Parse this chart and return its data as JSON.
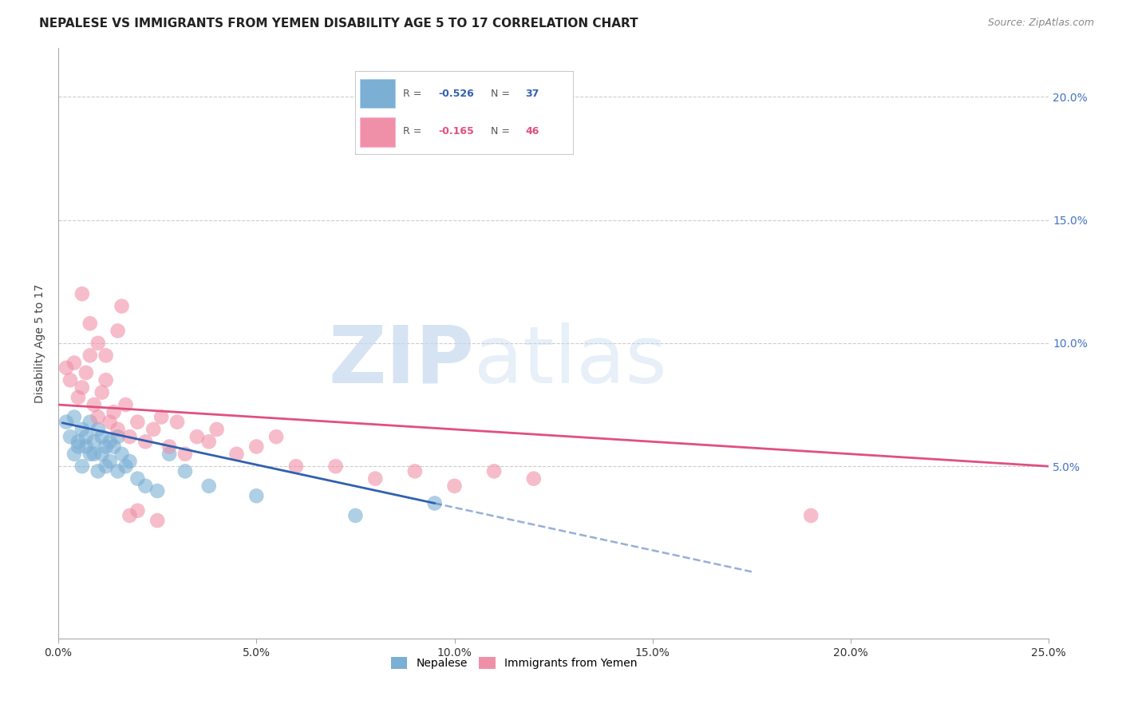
{
  "title": "NEPALESE VS IMMIGRANTS FROM YEMEN DISABILITY AGE 5 TO 17 CORRELATION CHART",
  "source": "Source: ZipAtlas.com",
  "ylabel": "Disability Age 5 to 17",
  "xlim": [
    0.0,
    0.25
  ],
  "ylim": [
    -0.02,
    0.22
  ],
  "plot_ylim": [
    -0.02,
    0.22
  ],
  "xticks": [
    0.0,
    0.05,
    0.1,
    0.15,
    0.2,
    0.25
  ],
  "xticklabels": [
    "0.0%",
    "5.0%",
    "10.0%",
    "15.0%",
    "20.0%",
    "25.0%"
  ],
  "yticks_right": [
    0.05,
    0.1,
    0.15,
    0.2
  ],
  "yticklabels_right": [
    "5.0%",
    "10.0%",
    "15.0%",
    "20.0%"
  ],
  "nepalese_R": "-0.526",
  "nepalese_N": "37",
  "yemen_R": "-0.165",
  "yemen_N": "46",
  "nepalese_x": [
    0.002,
    0.003,
    0.004,
    0.004,
    0.005,
    0.005,
    0.006,
    0.006,
    0.007,
    0.007,
    0.008,
    0.008,
    0.009,
    0.009,
    0.01,
    0.01,
    0.011,
    0.011,
    0.012,
    0.012,
    0.013,
    0.013,
    0.014,
    0.015,
    0.015,
    0.016,
    0.017,
    0.018,
    0.02,
    0.022,
    0.025,
    0.028,
    0.032,
    0.038,
    0.05,
    0.075,
    0.095
  ],
  "nepalese_y": [
    0.068,
    0.062,
    0.055,
    0.07,
    0.06,
    0.058,
    0.065,
    0.05,
    0.062,
    0.058,
    0.055,
    0.068,
    0.06,
    0.055,
    0.065,
    0.048,
    0.062,
    0.055,
    0.058,
    0.05,
    0.06,
    0.052,
    0.058,
    0.062,
    0.048,
    0.055,
    0.05,
    0.052,
    0.045,
    0.042,
    0.04,
    0.055,
    0.048,
    0.042,
    0.038,
    0.03,
    0.035
  ],
  "yemen_x": [
    0.002,
    0.003,
    0.004,
    0.005,
    0.006,
    0.007,
    0.008,
    0.009,
    0.01,
    0.011,
    0.012,
    0.013,
    0.014,
    0.015,
    0.016,
    0.017,
    0.018,
    0.02,
    0.022,
    0.024,
    0.026,
    0.028,
    0.03,
    0.032,
    0.035,
    0.038,
    0.04,
    0.045,
    0.05,
    0.055,
    0.06,
    0.07,
    0.08,
    0.09,
    0.1,
    0.11,
    0.12,
    0.006,
    0.008,
    0.01,
    0.012,
    0.015,
    0.018,
    0.02,
    0.025,
    0.19
  ],
  "yemen_y": [
    0.09,
    0.085,
    0.092,
    0.078,
    0.082,
    0.088,
    0.095,
    0.075,
    0.07,
    0.08,
    0.085,
    0.068,
    0.072,
    0.065,
    0.115,
    0.075,
    0.062,
    0.068,
    0.06,
    0.065,
    0.07,
    0.058,
    0.068,
    0.055,
    0.062,
    0.06,
    0.065,
    0.055,
    0.058,
    0.062,
    0.05,
    0.05,
    0.045,
    0.048,
    0.042,
    0.048,
    0.045,
    0.12,
    0.108,
    0.1,
    0.095,
    0.105,
    0.03,
    0.032,
    0.028,
    0.03
  ],
  "nepalese_color": "#7bafd4",
  "nepalese_edge": "#7bafd4",
  "yemen_color": "#f090a8",
  "yemen_edge": "#f090a8",
  "nepalese_line_color": "#3060b0",
  "yemen_line_color": "#e05080",
  "background_color": "#ffffff",
  "grid_color": "#cccccc",
  "title_fontsize": 11,
  "axis_label_fontsize": 10,
  "tick_fontsize": 10,
  "right_tick_color": "#4472c4"
}
